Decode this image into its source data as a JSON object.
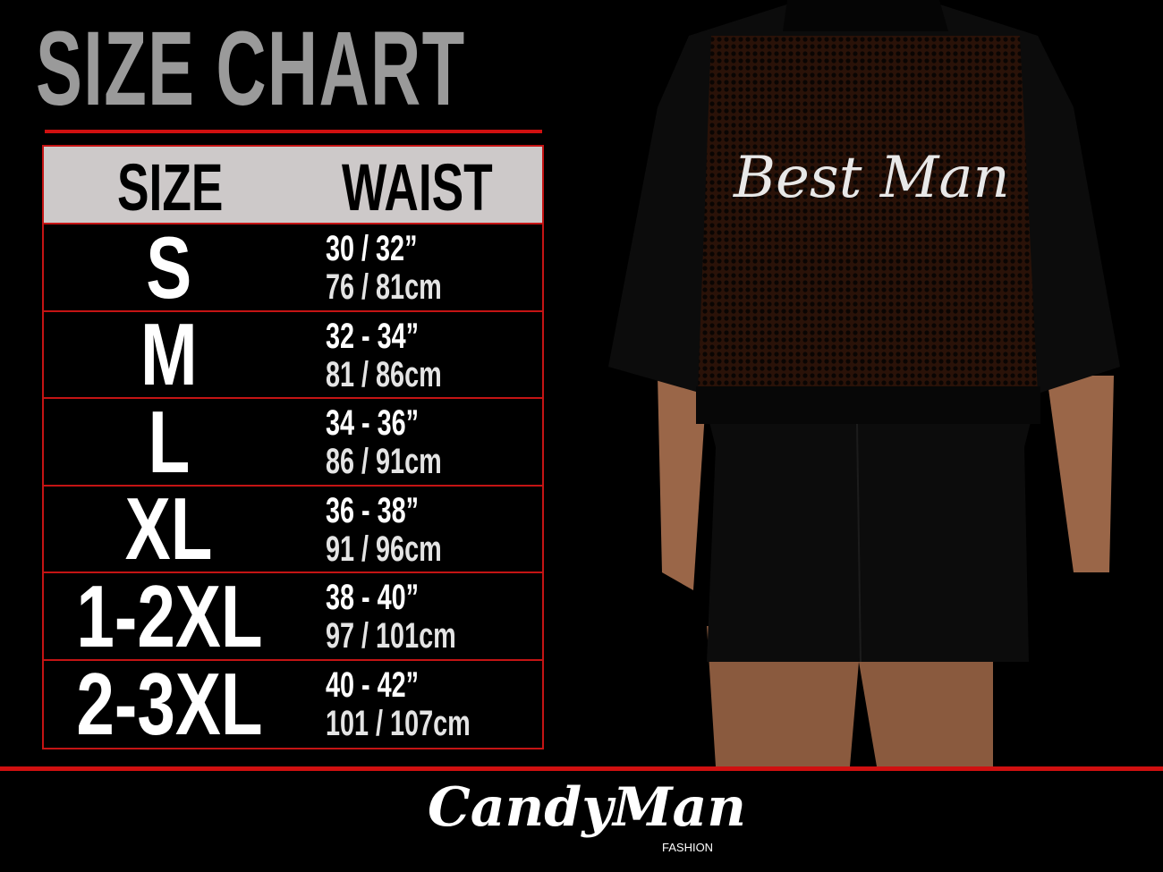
{
  "title": "SIZE CHART",
  "table": {
    "headers": [
      "SIZE",
      "WAIST"
    ],
    "rows": [
      {
        "size": "S",
        "inches": "30 / 32”",
        "cm": "76 / 81cm"
      },
      {
        "size": "M",
        "inches": "32 - 34”",
        "cm": "81 / 86cm"
      },
      {
        "size": "L",
        "inches": "34 - 36”",
        "cm": "86 / 91cm"
      },
      {
        "size": "XL",
        "inches": "36 - 38”",
        "cm": "91 / 96cm"
      },
      {
        "size": "1-2XL",
        "inches": "38 - 40”",
        "cm": "97 / 101cm"
      },
      {
        "size": "2-3XL",
        "inches": "40 - 42”",
        "cm": "101 / 107cm"
      }
    ]
  },
  "product": {
    "print_text": "Best Man"
  },
  "brand": {
    "name": "CandyMan",
    "sub": "FASHION"
  },
  "colors": {
    "accent": "#d01010",
    "header_bg": "#cdc9c9",
    "title": "#9a9a9a"
  }
}
